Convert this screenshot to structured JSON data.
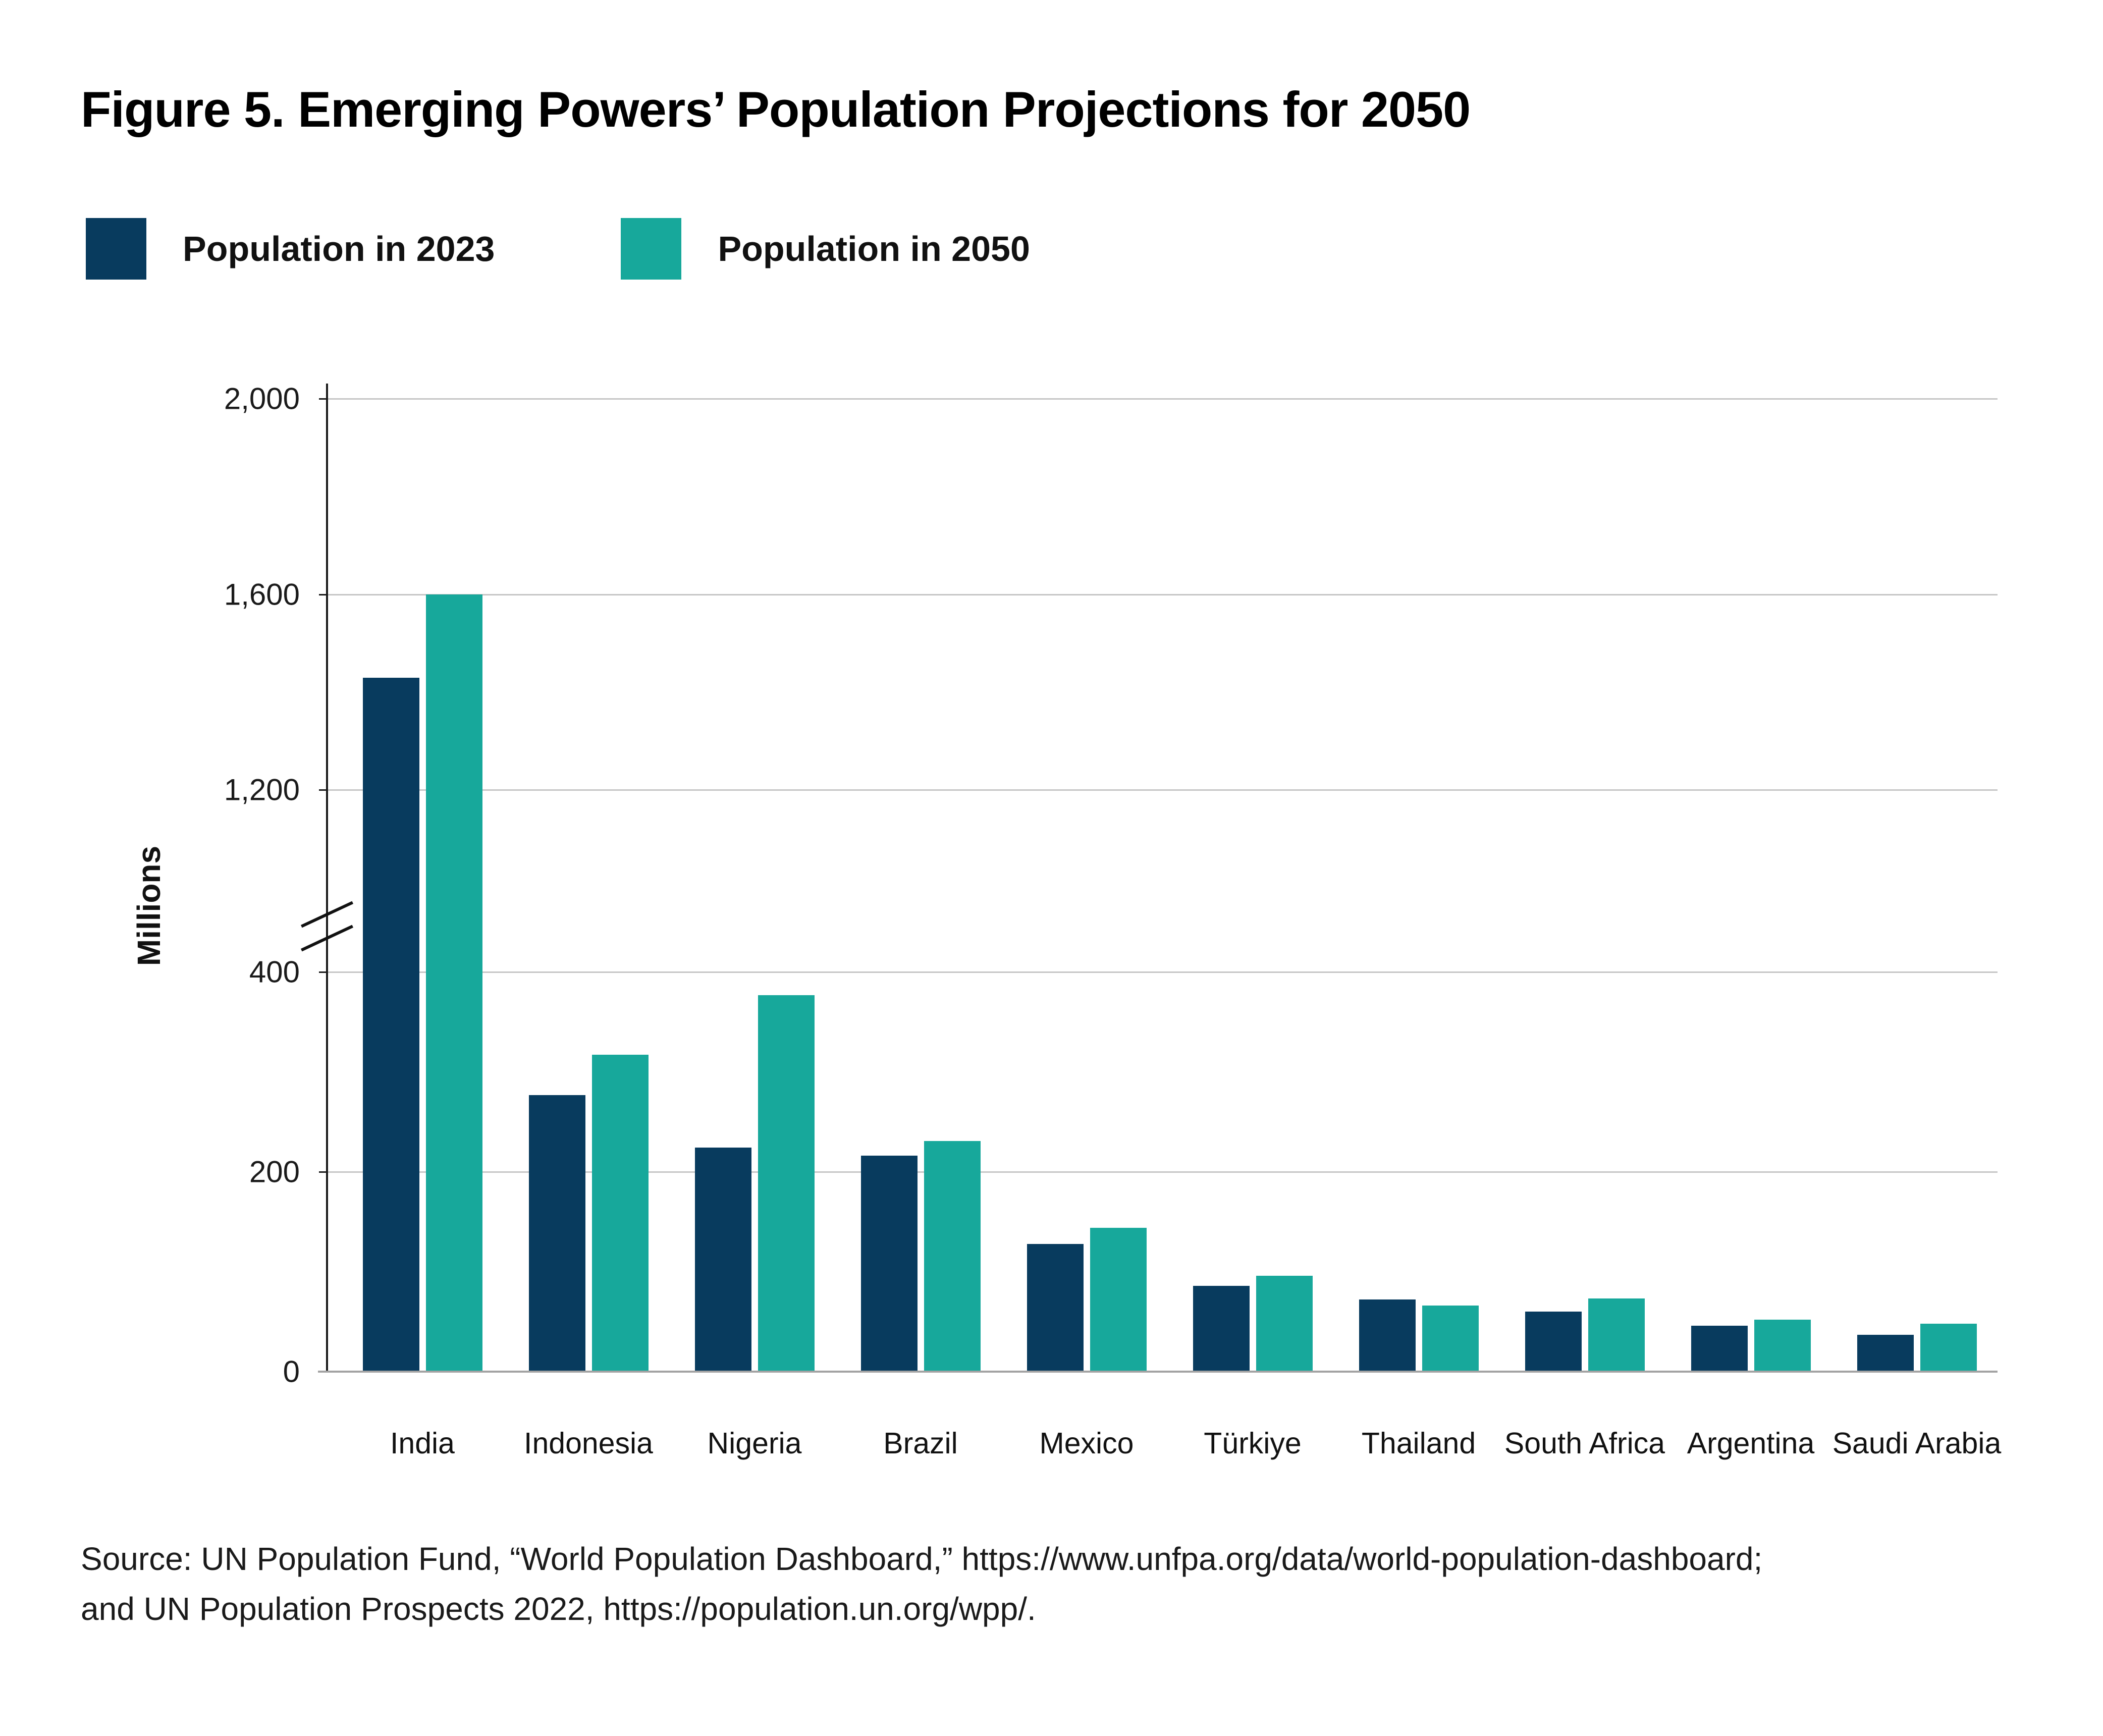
{
  "title": "Figure 5. Emerging Powers’ Population Projections for 2050",
  "legend": [
    {
      "label": "Population in 2023",
      "color": "#083b5e"
    },
    {
      "label": "Population in 2050",
      "color": "#17a89b"
    }
  ],
  "chart_data": {
    "type": "bar",
    "title": "Figure 5. Emerging Powers’ Population Projections for 2050",
    "xlabel": "",
    "ylabel": "Millions",
    "categories": [
      "India",
      "Indonesia",
      "Nigeria",
      "Brazil",
      "Mexico",
      "Türkiye",
      "Thailand",
      "South Africa",
      "Argentina",
      "Saudi Arabia"
    ],
    "series": [
      {
        "name": "Population in 2023",
        "color": "#083b5e",
        "values": [
          1429,
          277,
          224,
          216,
          128,
          86,
          72,
          60,
          46,
          37
        ]
      },
      {
        "name": "Population in 2050",
        "color": "#17a89b",
        "values": [
          1600,
          317,
          377,
          231,
          144,
          96,
          66,
          73,
          52,
          48
        ]
      }
    ],
    "y_axis": {
      "unit": "millions",
      "ticks": [
        0,
        200,
        400,
        1200,
        1600,
        2000
      ],
      "tick_labels": [
        "0",
        "200",
        "400",
        "1,200",
        "1,600",
        "2,000"
      ],
      "axis_break_between": [
        400,
        1200
      ]
    },
    "grid": true,
    "legend_position": "top-left"
  },
  "source": {
    "lines": [
      "Source: UN Population Fund, “World Population Dashboard,” https://www.unfpa.org/data/world-population-dashboard;",
      "and UN Population Prospects 2022,  https://population.un.org/wpp/."
    ]
  }
}
